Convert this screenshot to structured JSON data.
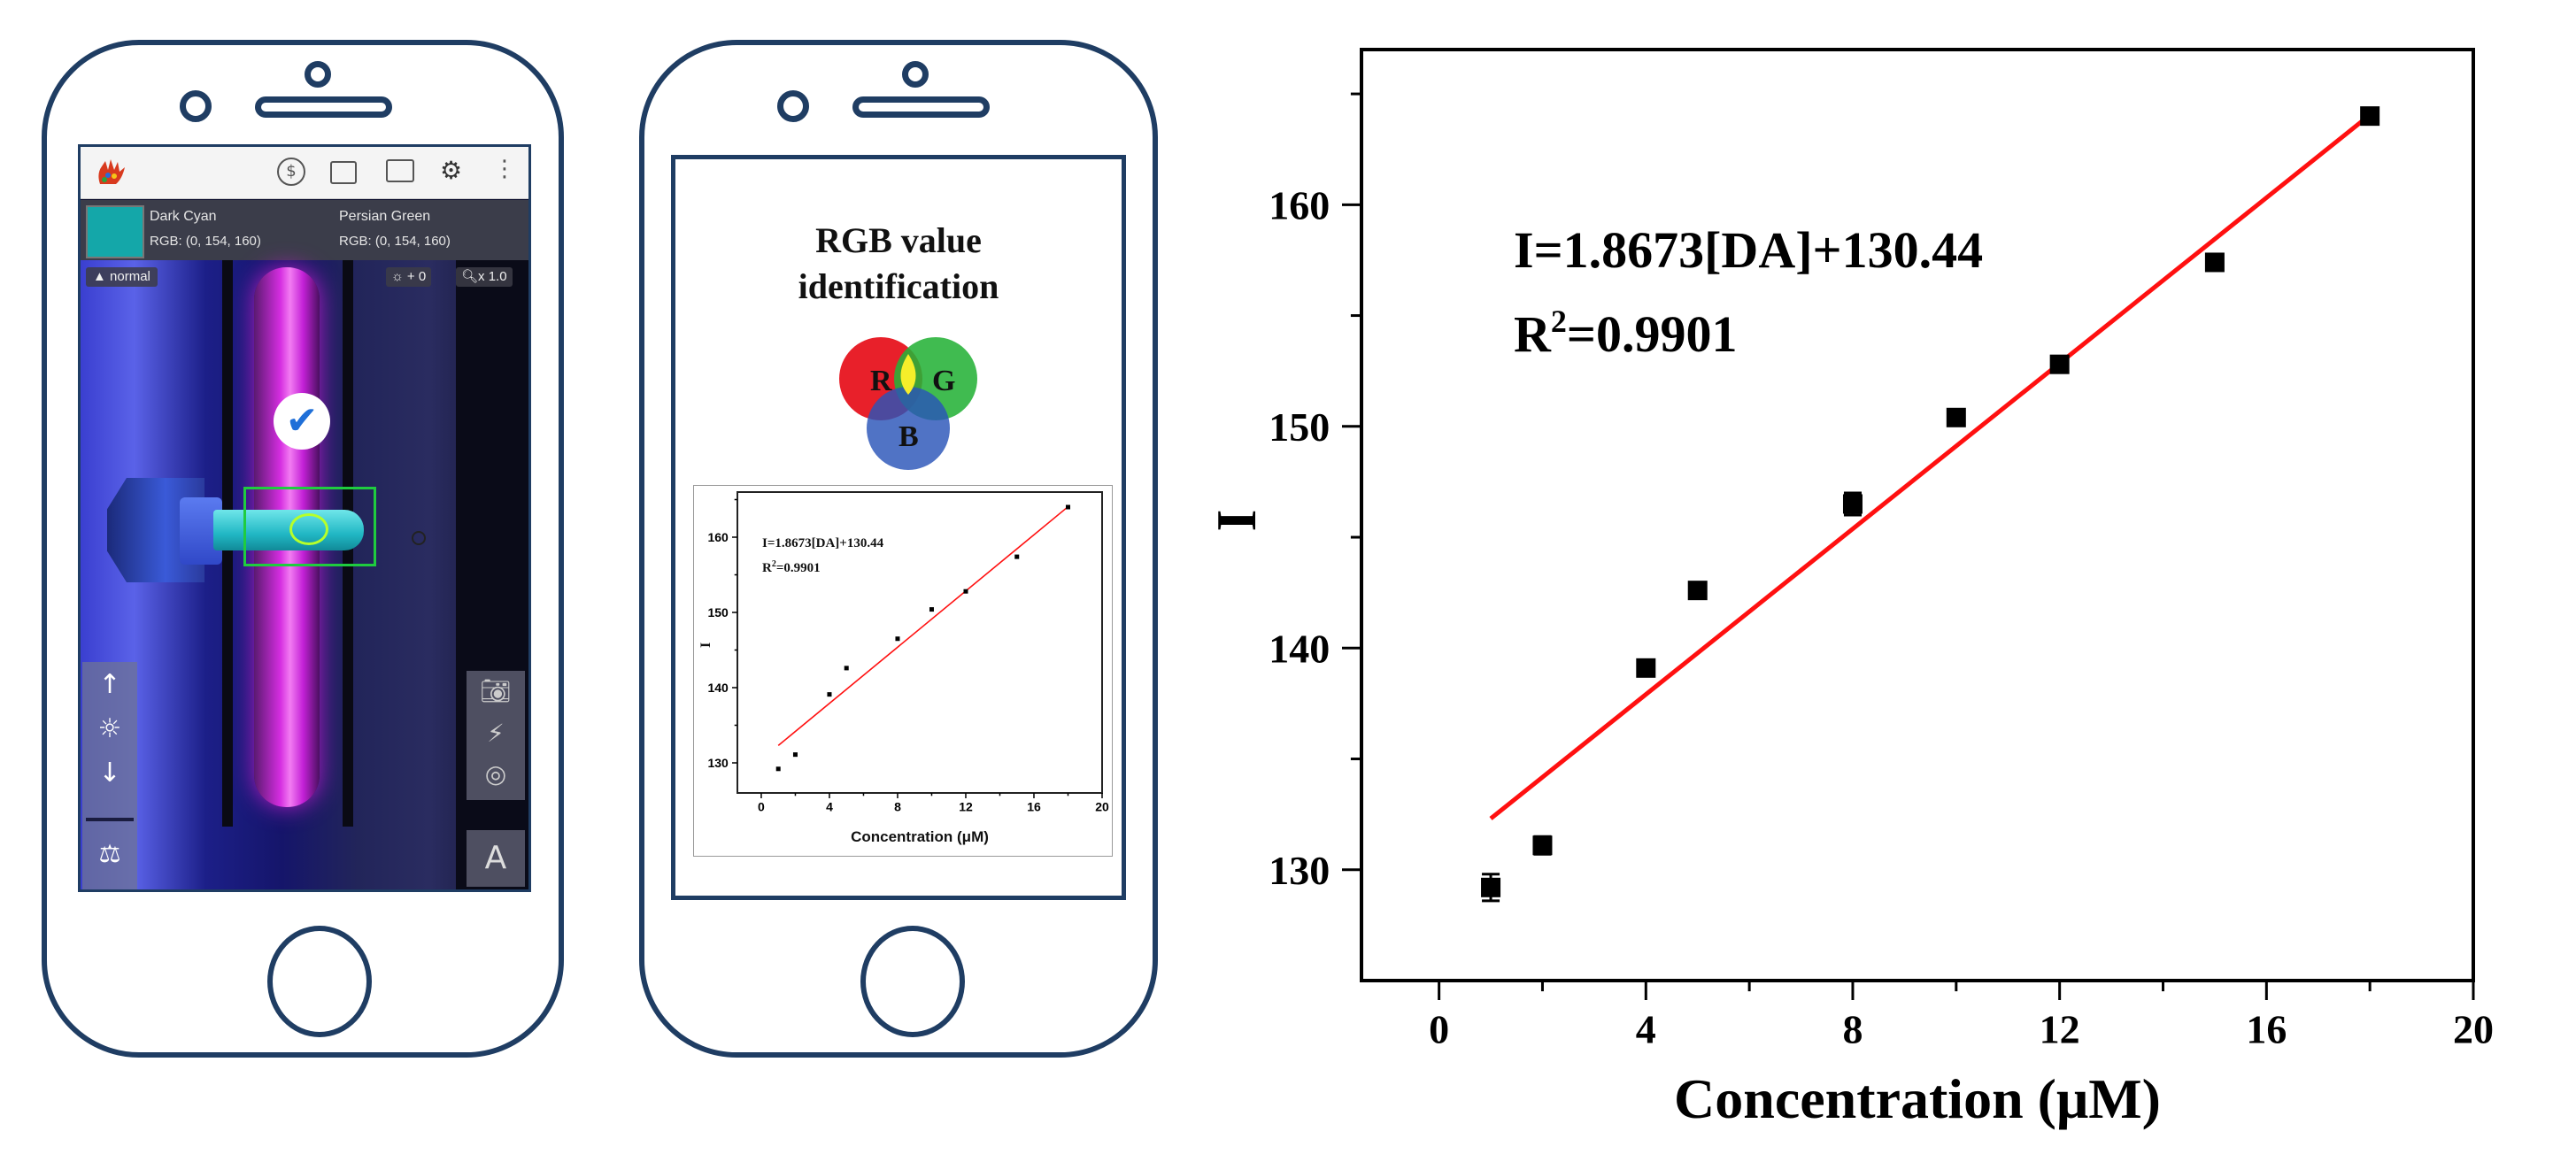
{
  "phone1": {
    "color_card": {
      "primary_name": "Dark Cyan",
      "primary_rgb": "RGB: (0, 154, 160)",
      "secondary_name": "Persian Green",
      "secondary_rgb": "RGB: (0, 154, 160)",
      "swatch_color": "#14a7a9"
    },
    "mode_label": "normal",
    "exposure_label": "+ 0",
    "zoom_label": "x 1.0",
    "icons": [
      "hand-palette-icon",
      "dollar-icon",
      "image-icon",
      "comment-icon",
      "gear-icon",
      "more-icon",
      "arrow-up-icon",
      "brightness-icon",
      "arrow-down-icon",
      "balance-icon",
      "camera-icon",
      "flashlight-icon",
      "target-icon",
      "text-icon",
      "checkmark-icon"
    ],
    "text_button_label": "A"
  },
  "phone2": {
    "title_line1": "RGB value",
    "title_line2": "identification",
    "venn_labels": {
      "r": "R",
      "g": "G",
      "b": "B"
    },
    "venn_colors": {
      "r": "#e8202a",
      "g": "#26b238",
      "b": "#2a54b8"
    },
    "mini_equation": "I=1.8673[DA]+130.44",
    "mini_r2_prefix": "R",
    "mini_r2_sup": "2",
    "mini_r2_value": "=0.9901",
    "mini_xlabel": "Concentration (μM)",
    "mini_ylabel": "I"
  },
  "chart_data": {
    "type": "scatter",
    "title": "",
    "xlabel": "Concentration (μM)",
    "ylabel": "I",
    "xlim": [
      -1.5,
      20
    ],
    "ylim": [
      125,
      167
    ],
    "xticks": [
      0,
      4,
      8,
      12,
      16,
      20
    ],
    "xtick_labels": [
      "0",
      "4",
      "8",
      "12",
      "16",
      "20"
    ],
    "yticks": [
      130,
      140,
      150,
      160
    ],
    "ytick_labels": [
      "130",
      "140",
      "150",
      "160"
    ],
    "points": [
      {
        "x": 1,
        "y": 129.2,
        "err": 0.6
      },
      {
        "x": 2,
        "y": 131.1,
        "err": 0.4
      },
      {
        "x": 4,
        "y": 139.1,
        "err": 0.2
      },
      {
        "x": 5,
        "y": 142.6,
        "err": 0.2
      },
      {
        "x": 8,
        "y": 146.5,
        "err": 0.5
      },
      {
        "x": 10,
        "y": 150.4,
        "err": 0.2
      },
      {
        "x": 12,
        "y": 152.8,
        "err": 0.2
      },
      {
        "x": 15,
        "y": 157.4,
        "err": 0.2
      },
      {
        "x": 18,
        "y": 164.0,
        "err": 0.2
      }
    ],
    "fit": {
      "slope": 1.8673,
      "intercept": 130.44,
      "x_range": [
        1,
        18
      ],
      "color": "#ff1010"
    },
    "equation": "I=1.8673[DA]+130.44",
    "r2_prefix": "R",
    "r2_sup": "2",
    "r2_value": "=0.9901"
  }
}
